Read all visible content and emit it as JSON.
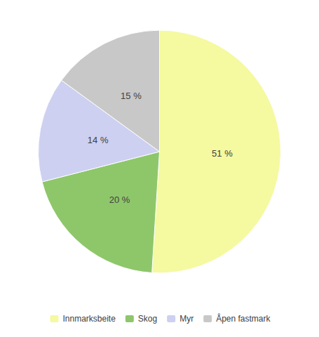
{
  "chart_data": {
    "type": "pie",
    "categories": [
      "Innmarksbeite",
      "Skog",
      "Myr",
      "Åpen fastmark"
    ],
    "values": [
      51,
      20,
      14,
      15
    ],
    "value_labels": [
      "51 %",
      "20 %",
      "14 %",
      "15 %"
    ],
    "colors": [
      "#f5f9a0",
      "#8ec76a",
      "#cdd0f0",
      "#c8c8c8"
    ],
    "data_labels": true,
    "legend": "bottom"
  }
}
